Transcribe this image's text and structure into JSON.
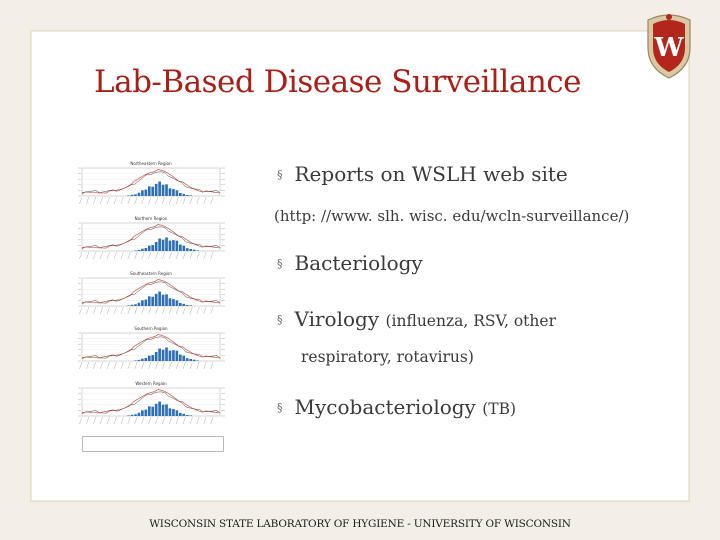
{
  "slide": {
    "title": "Lab-Based Disease Surveillance",
    "bullets": [
      {
        "text": "Reports on WSLH web site"
      },
      {
        "text": "(http: //www. slh. wisc. edu/wcln-surveillance/)"
      },
      {
        "text": "Bacteriology"
      },
      {
        "text_main": "Virology ",
        "text_small": "(influenza, RSV, other"
      },
      {
        "text": "respiratory, rotavirus)"
      },
      {
        "text_main": "Mycobacteriology ",
        "text_small": "(TB)"
      }
    ],
    "bullet_char": "§",
    "footer": "WISCONSIN STATE LABORATORY OF HYGIENE - UNIVERSITY OF WISCONSIN"
  },
  "thumbnail_panels": [
    {
      "title": "Northeastern Region"
    },
    {
      "title": "Northern Region"
    },
    {
      "title": "Southeastern Region"
    },
    {
      "title": "Southern Region"
    },
    {
      "title": "Western Region"
    }
  ],
  "crest": {
    "letter": "W"
  },
  "colors": {
    "title": "#a8201a",
    "bar": "#2e6eb5",
    "line_red": "#c0392b",
    "line_dark": "#444444"
  }
}
